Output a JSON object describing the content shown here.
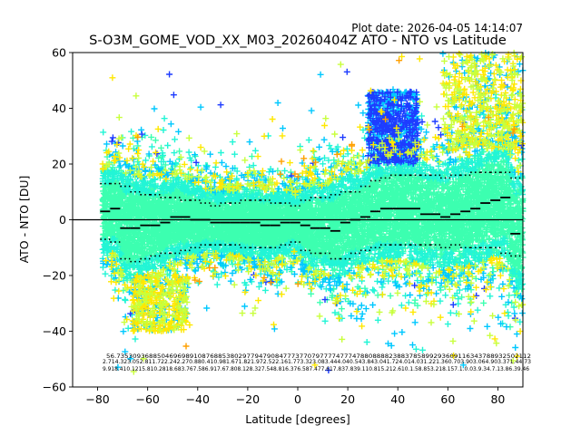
{
  "plot_date": "Plot date: 2026-04-05 14:14:07",
  "chart_data": {
    "type": "scatter",
    "title": "S-O3M_GOME_VOD_XX_M03_20260404Z ATO - NTO vs Latitude",
    "xlabel": "Latitude [degrees]",
    "ylabel": "ATO - NTO [DU]",
    "xlim": [
      -90,
      90
    ],
    "ylim": [
      -60,
      60
    ],
    "xticks": [
      -80,
      -60,
      -40,
      -20,
      0,
      20,
      40,
      60,
      80
    ],
    "yticks": [
      -60,
      -40,
      -20,
      0,
      20,
      40,
      60
    ],
    "xtick_labels": [
      "−80",
      "−60",
      "−40",
      "−20",
      "0",
      "20",
      "40",
      "60",
      "80"
    ],
    "ytick_labels": [
      "−60",
      "−40",
      "−20",
      "0",
      "20",
      "40",
      "60"
    ],
    "zero_line": 0,
    "marker": "+",
    "colors": {
      "dense": "#3cffb0",
      "mid": "#22f5d6",
      "cyan": "#00c8ff",
      "blue": "#1e3cff",
      "yellow": "#ffe800",
      "lime": "#c8ff3c",
      "orange": "#ffa000"
    },
    "bins_lat": [
      -77,
      -73,
      -69,
      -65,
      -61,
      -57,
      -53,
      -49,
      -45,
      -41,
      -37,
      -33,
      -29,
      -25,
      -21,
      -17,
      -13,
      -9,
      -5,
      -1,
      3,
      7,
      11,
      15,
      19,
      23,
      27,
      31,
      35,
      39,
      43,
      47,
      51,
      55,
      59,
      63,
      67,
      71,
      75,
      79,
      83,
      87
    ],
    "mean": [
      3,
      4,
      -3,
      -3,
      -2,
      -2,
      -1,
      1,
      1,
      0,
      0,
      -1,
      -1,
      -1,
      -1,
      -1,
      -2,
      -2,
      -1,
      -1,
      -2,
      -3,
      -3,
      -4,
      -1,
      0,
      1,
      3,
      4,
      4,
      4,
      4,
      2,
      2,
      1,
      2,
      3,
      4,
      6,
      7,
      8,
      -5
    ],
    "upper": [
      13,
      13,
      12,
      10,
      9,
      9,
      8,
      8,
      7,
      7,
      6,
      5,
      6,
      6,
      7,
      7,
      7,
      6,
      6,
      5,
      7,
      8,
      8,
      9,
      10,
      10,
      12,
      14,
      15,
      16,
      16,
      16,
      16,
      16,
      15,
      16,
      16,
      17,
      17,
      17,
      17,
      15
    ],
    "lower": [
      -7,
      -8,
      -14,
      -15,
      -14,
      -13,
      -12,
      -12,
      -11,
      -10,
      -9,
      -9,
      -9,
      -9,
      -10,
      -10,
      -10,
      -10,
      -9,
      -8,
      -11,
      -12,
      -12,
      -14,
      -14,
      -12,
      -11,
      -10,
      -9,
      -9,
      -9,
      -9,
      -9,
      -9,
      -10,
      -9,
      -10,
      -10,
      -10,
      -10,
      -12,
      -13
    ],
    "annotations": {
      "row1": "56.735309368850469698910876885380297794790847773770797777477747880888823883785899293609116343788932502112",
      "row2": "2.714.323.052.811.722.242.270.880.410.981.671.821.972.522.161.773.323.083.444.040.543.843.041.724.014.031.221.360.703.903.064.903.371.44.73",
      "row3": "9.918.410.1215.810.2818.683.767.586.917.67.808.128.327.548.816.376.587.477.617.837.839.110.815.212.610.1.58.853.218.157.1.0.03.9.34.7.13.86.39.46"
    }
  }
}
